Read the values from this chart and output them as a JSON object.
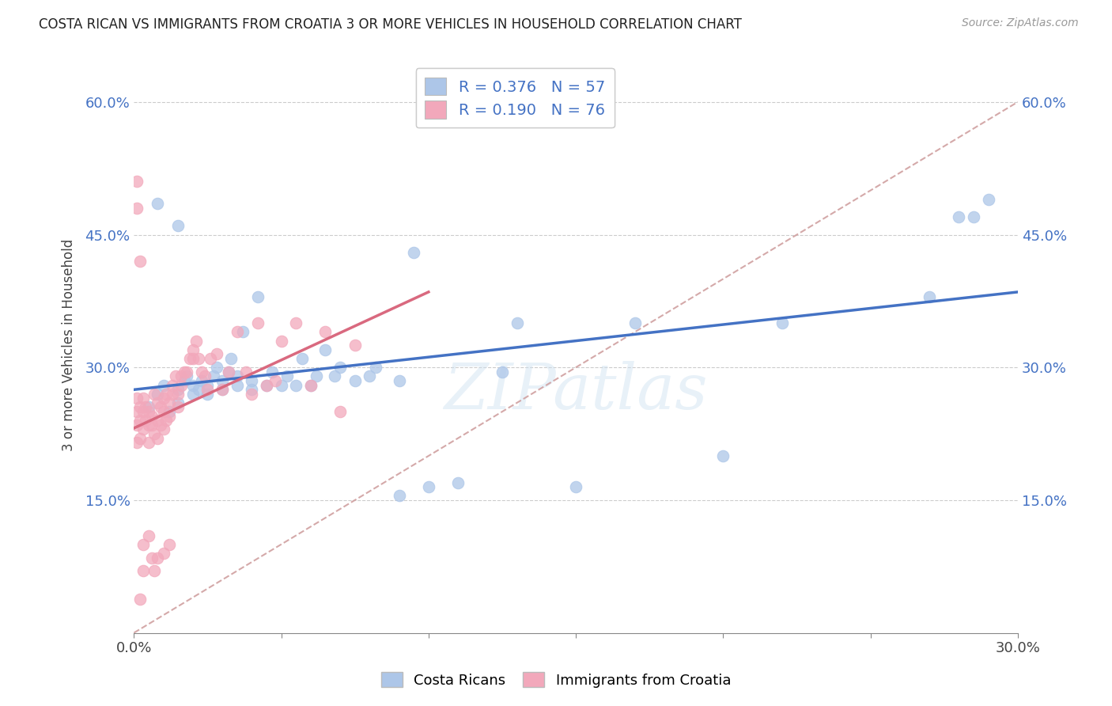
{
  "title": "COSTA RICAN VS IMMIGRANTS FROM CROATIA 3 OR MORE VEHICLES IN HOUSEHOLD CORRELATION CHART",
  "source": "Source: ZipAtlas.com",
  "ylabel_label": "3 or more Vehicles in Household",
  "xmin": 0.0,
  "xmax": 0.3,
  "ymin": 0.0,
  "ymax": 0.65,
  "xtick_positions": [
    0.0,
    0.05,
    0.1,
    0.15,
    0.2,
    0.25,
    0.3
  ],
  "xtick_labels": [
    "0.0%",
    "",
    "",
    "",
    "",
    "",
    "30.0%"
  ],
  "ytick_positions": [
    0.15,
    0.3,
    0.45,
    0.6
  ],
  "ytick_labels": [
    "15.0%",
    "30.0%",
    "45.0%",
    "60.0%"
  ],
  "legend_blue_R": "0.376",
  "legend_blue_N": "57",
  "legend_pink_R": "0.190",
  "legend_pink_N": "76",
  "blue_color": "#adc6e8",
  "pink_color": "#f2a8bb",
  "blue_line_color": "#4472c4",
  "pink_line_color": "#d9697f",
  "dashed_line_color": "#d0a0a0",
  "watermark_text": "ZIPatlas",
  "blue_scatter_x": [
    0.005,
    0.008,
    0.01,
    0.012,
    0.015,
    0.015,
    0.017,
    0.018,
    0.02,
    0.02,
    0.022,
    0.023,
    0.025,
    0.025,
    0.027,
    0.028,
    0.03,
    0.03,
    0.032,
    0.033,
    0.035,
    0.035,
    0.037,
    0.04,
    0.04,
    0.042,
    0.045,
    0.047,
    0.05,
    0.052,
    0.055,
    0.057,
    0.06,
    0.062,
    0.065,
    0.068,
    0.07,
    0.075,
    0.08,
    0.082,
    0.09,
    0.095,
    0.1,
    0.11,
    0.125,
    0.13,
    0.15,
    0.17,
    0.2,
    0.22,
    0.27,
    0.28,
    0.285,
    0.29,
    0.008,
    0.015,
    0.09
  ],
  "blue_scatter_y": [
    0.255,
    0.27,
    0.28,
    0.25,
    0.26,
    0.275,
    0.285,
    0.29,
    0.27,
    0.28,
    0.275,
    0.285,
    0.27,
    0.28,
    0.29,
    0.3,
    0.275,
    0.285,
    0.295,
    0.31,
    0.28,
    0.29,
    0.34,
    0.275,
    0.285,
    0.38,
    0.28,
    0.295,
    0.28,
    0.29,
    0.28,
    0.31,
    0.28,
    0.29,
    0.32,
    0.29,
    0.3,
    0.285,
    0.29,
    0.3,
    0.285,
    0.43,
    0.165,
    0.17,
    0.295,
    0.35,
    0.165,
    0.35,
    0.2,
    0.35,
    0.38,
    0.47,
    0.47,
    0.49,
    0.485,
    0.46,
    0.155
  ],
  "pink_scatter_x": [
    0.001,
    0.001,
    0.001,
    0.001,
    0.002,
    0.002,
    0.002,
    0.003,
    0.003,
    0.003,
    0.004,
    0.004,
    0.005,
    0.005,
    0.005,
    0.006,
    0.006,
    0.007,
    0.007,
    0.008,
    0.008,
    0.008,
    0.009,
    0.009,
    0.01,
    0.01,
    0.01,
    0.011,
    0.011,
    0.012,
    0.012,
    0.013,
    0.013,
    0.014,
    0.015,
    0.015,
    0.016,
    0.016,
    0.017,
    0.018,
    0.019,
    0.02,
    0.02,
    0.021,
    0.022,
    0.023,
    0.024,
    0.025,
    0.026,
    0.028,
    0.03,
    0.032,
    0.035,
    0.038,
    0.04,
    0.042,
    0.045,
    0.048,
    0.05,
    0.055,
    0.06,
    0.065,
    0.07,
    0.075,
    0.001,
    0.001,
    0.002,
    0.003,
    0.005,
    0.006,
    0.007,
    0.008,
    0.01,
    0.012,
    0.002,
    0.003
  ],
  "pink_scatter_y": [
    0.215,
    0.235,
    0.25,
    0.265,
    0.22,
    0.24,
    0.255,
    0.23,
    0.25,
    0.265,
    0.24,
    0.255,
    0.215,
    0.235,
    0.25,
    0.235,
    0.245,
    0.225,
    0.27,
    0.22,
    0.24,
    0.26,
    0.235,
    0.255,
    0.23,
    0.25,
    0.265,
    0.24,
    0.27,
    0.245,
    0.26,
    0.27,
    0.28,
    0.29,
    0.255,
    0.27,
    0.28,
    0.29,
    0.295,
    0.295,
    0.31,
    0.31,
    0.32,
    0.33,
    0.31,
    0.295,
    0.29,
    0.275,
    0.31,
    0.315,
    0.275,
    0.295,
    0.34,
    0.295,
    0.27,
    0.35,
    0.28,
    0.285,
    0.33,
    0.35,
    0.28,
    0.34,
    0.25,
    0.325,
    0.51,
    0.48,
    0.42,
    0.1,
    0.11,
    0.085,
    0.07,
    0.085,
    0.09,
    0.1,
    0.038,
    0.07
  ]
}
